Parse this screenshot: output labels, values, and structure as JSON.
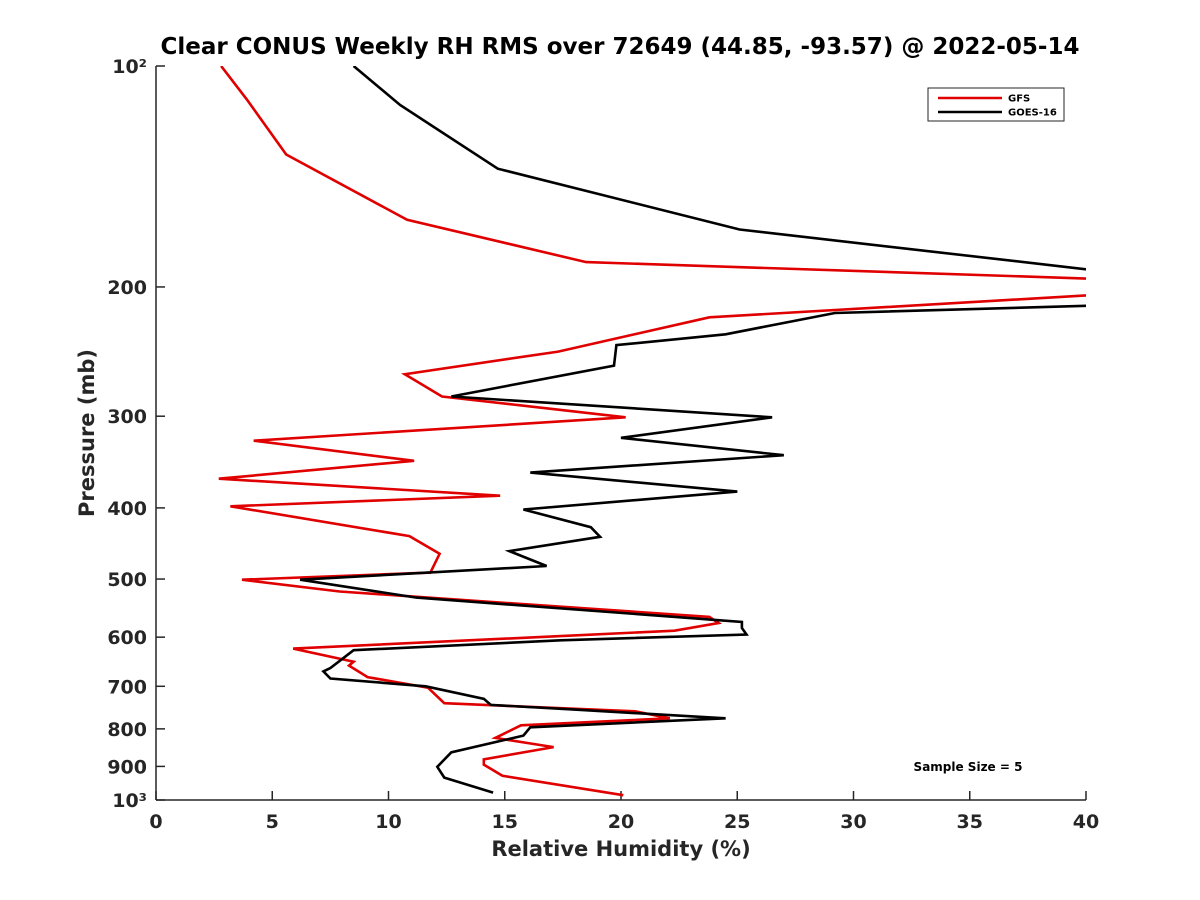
{
  "chart_data": {
    "type": "line",
    "title": "Clear CONUS Weekly RH RMS over 72649 (44.85, -93.57) @ 2022-05-14",
    "xlabel": "Relative Humidity (%)",
    "ylabel": "Pressure (mb)",
    "xlim": [
      0,
      40
    ],
    "ylim": [
      100,
      1000
    ],
    "yscale": "log",
    "y_reversed": true,
    "x_ticks": [
      0,
      5,
      10,
      15,
      20,
      25,
      30,
      35,
      40
    ],
    "x_tick_labels": [
      "0",
      "5",
      "10",
      "15",
      "20",
      "25",
      "30",
      "35",
      "40"
    ],
    "y_ticks": [
      100,
      200,
      300,
      400,
      500,
      600,
      700,
      800,
      900,
      1000
    ],
    "y_tick_labels": [
      "10²",
      "200",
      "300",
      "400",
      "500",
      "600",
      "700",
      "800",
      "900",
      "10³"
    ],
    "grid": false,
    "legend_position": "top-right",
    "annotation": "Sample Size = 5",
    "series": [
      {
        "name": "GFS",
        "color": "#e00000",
        "x": [
          2.8,
          3.9,
          5.6,
          10.8,
          18.5,
          40.5,
          40.5,
          23.8,
          17.3,
          10.7,
          12.3,
          20.2,
          4.2,
          11.1,
          2.7,
          14.8,
          3.2,
          10.9,
          12.2,
          11.8,
          3.7,
          7.9,
          23.8,
          24.2,
          22.3,
          5.9,
          8.5,
          8.3,
          9.1,
          11.7,
          12.4,
          20.6,
          22.1,
          15.7,
          14.6,
          17.1,
          14.1,
          14.1,
          14.9,
          20.1
        ],
        "y": [
          100,
          111,
          132,
          162,
          185,
          195,
          205,
          220,
          245,
          263,
          282,
          301,
          324,
          345,
          365,
          385,
          398,
          437,
          462,
          490,
          501,
          520,
          563,
          574,
          588,
          622,
          648,
          656,
          680,
          703,
          738,
          757,
          774,
          791,
          823,
          847,
          880,
          895,
          927,
          985
        ]
      },
      {
        "name": "GOES-16",
        "color": "#000000",
        "x": [
          8.5,
          10.5,
          14.7,
          25.1,
          40.5,
          40.5,
          29.2,
          24.5,
          19.8,
          19.7,
          12.7,
          26.5,
          20.0,
          27.0,
          16.1,
          25.0,
          15.8,
          18.7,
          19.1,
          15.2,
          16.8,
          6.2,
          11.2,
          25.2,
          25.2,
          25.4,
          17.4,
          8.5,
          7.5,
          7.2,
          7.5,
          11.6,
          14.1,
          14.4,
          18.0,
          24.5,
          16.1,
          15.8,
          12.7,
          12.1,
          12.4,
          14.5
        ],
        "y": [
          100,
          113,
          138,
          167,
          190,
          212,
          217,
          232,
          240,
          256,
          282,
          301,
          321,
          339,
          358,
          380,
          402,
          425,
          438,
          458,
          480,
          501,
          530,
          572,
          583,
          595,
          606,
          625,
          661,
          668,
          683,
          700,
          728,
          742,
          753,
          774,
          796,
          817,
          861,
          901,
          932,
          977
        ]
      }
    ]
  }
}
